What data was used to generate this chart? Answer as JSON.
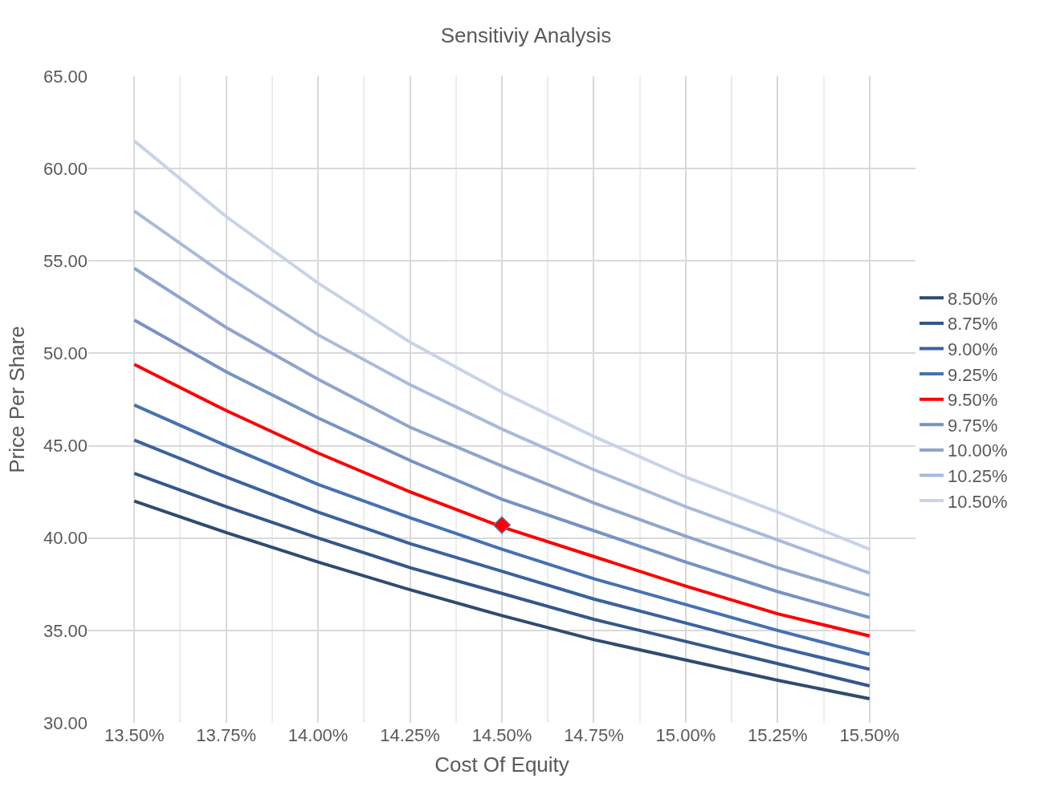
{
  "chart_data": {
    "type": "line",
    "title": "Sensitiviy Analysis",
    "xlabel": "Cost Of Equity",
    "ylabel": "Price Per Share",
    "categories": [
      "13.50%",
      "13.75%",
      "14.00%",
      "14.25%",
      "14.50%",
      "14.75%",
      "15.00%",
      "15.25%",
      "15.50%"
    ],
    "series": [
      {
        "name": "8.50%",
        "color": "#2f4b70",
        "values": [
          42.0,
          40.3,
          38.7,
          37.2,
          35.8,
          34.5,
          33.4,
          32.3,
          31.3
        ]
      },
      {
        "name": "8.75%",
        "color": "#34578a",
        "values": [
          43.5,
          41.7,
          40.0,
          38.4,
          37.0,
          35.6,
          34.4,
          33.2,
          32.0
        ]
      },
      {
        "name": "9.00%",
        "color": "#3a629e",
        "values": [
          45.3,
          43.3,
          41.4,
          39.7,
          38.2,
          36.7,
          35.4,
          34.1,
          32.9
        ]
      },
      {
        "name": "9.25%",
        "color": "#4671b2",
        "values": [
          47.2,
          45.0,
          42.9,
          41.1,
          39.4,
          37.8,
          36.4,
          35.0,
          33.7
        ]
      },
      {
        "name": "9.50%",
        "color": "#ff0000",
        "values": [
          49.4,
          46.9,
          44.6,
          42.5,
          40.6,
          39.0,
          37.4,
          35.9,
          34.7
        ]
      },
      {
        "name": "9.75%",
        "color": "#7792c4",
        "values": [
          51.8,
          49.0,
          46.5,
          44.2,
          42.1,
          40.4,
          38.7,
          37.1,
          35.7
        ]
      },
      {
        "name": "10.00%",
        "color": "#8fa5cd",
        "values": [
          54.6,
          51.4,
          48.6,
          46.0,
          43.9,
          41.9,
          40.1,
          38.4,
          36.9
        ]
      },
      {
        "name": "10.25%",
        "color": "#a9badb",
        "values": [
          57.7,
          54.2,
          51.0,
          48.3,
          45.9,
          43.7,
          41.7,
          39.9,
          38.1
        ]
      },
      {
        "name": "10.50%",
        "color": "#c9d3e8",
        "values": [
          61.5,
          57.4,
          53.8,
          50.6,
          47.9,
          45.5,
          43.3,
          41.4,
          39.4
        ]
      },
      {
        "type": "scatter",
        "color": "#ff0000",
        "marker": "diamond",
        "x": [
          "14.50%"
        ],
        "values": [
          40.7
        ]
      }
    ],
    "ylim": [
      30,
      65
    ],
    "yticks": [
      {
        "value": 30,
        "label": "30.00"
      },
      {
        "value": 35,
        "label": "35.00"
      },
      {
        "value": 40,
        "label": "40.00"
      },
      {
        "value": 45,
        "label": "45.00"
      },
      {
        "value": 50,
        "label": "50.00"
      },
      {
        "value": 55,
        "label": "55.00"
      },
      {
        "value": 60,
        "label": "60.00"
      },
      {
        "value": 65,
        "label": "65.00"
      }
    ],
    "grid": true,
    "legend": "right",
    "marker": "none"
  }
}
